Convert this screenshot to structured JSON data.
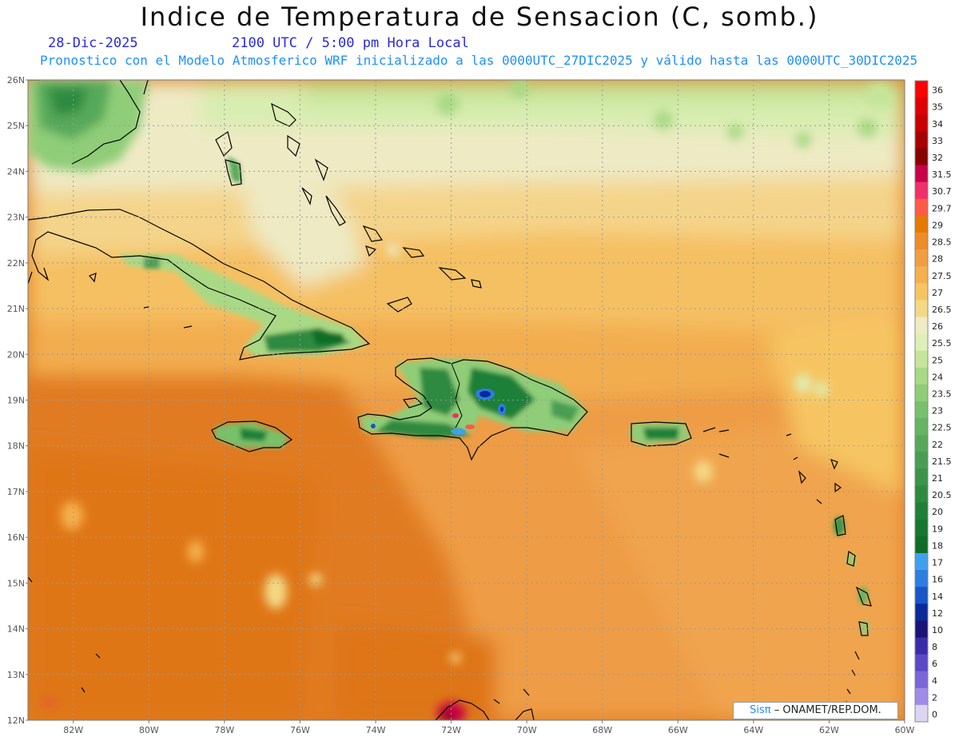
{
  "header": {
    "title": "Indice de Temperatura de Sensacion (C, somb.)",
    "date": "28-Dic-2025",
    "time": "2100 UTC / 5:00 pm Hora Local",
    "subtitle": "Pronostico con el Modelo Atmosferico WRF inicializado a las 0000UTC_27DIC2025 y válido hasta las  0000UTC_30DIC2025"
  },
  "map": {
    "lat_labels": [
      "26N",
      "25N",
      "24N",
      "23N",
      "22N",
      "21N",
      "20N",
      "19N",
      "18N",
      "17N",
      "16N",
      "15N",
      "14N",
      "13N",
      "12N"
    ],
    "lat_values": [
      26,
      25,
      24,
      23,
      22,
      21,
      20,
      19,
      18,
      17,
      16,
      15,
      14,
      13,
      12
    ],
    "lon_labels": [
      "82W",
      "80W",
      "78W",
      "76W",
      "74W",
      "72W",
      "70W",
      "68W",
      "66W",
      "64W",
      "62W",
      "60W"
    ],
    "lon_values": [
      -82,
      -80,
      -78,
      -76,
      -74,
      -72,
      -70,
      -68,
      -66,
      -64,
      -62,
      -60
    ],
    "lat_range": [
      12,
      26
    ],
    "lon_range": [
      -83.2,
      -60
    ]
  },
  "legend": {
    "labels": [
      "36",
      "35",
      "34",
      "33",
      "32",
      "31.5",
      "30.7",
      "29.7",
      "29",
      "28.5",
      "28",
      "27.5",
      "27",
      "26.5",
      "26",
      "25.5",
      "25",
      "24",
      "23.5",
      "23",
      "22.5",
      "22",
      "21.5",
      "21",
      "20.5",
      "20",
      "19",
      "18",
      "17",
      "16",
      "14",
      "12",
      "10",
      "8",
      "6",
      "4",
      "2",
      "0"
    ],
    "colors": [
      "#ff0000",
      "#e00000",
      "#c80000",
      "#a80000",
      "#880000",
      "#c8004a",
      "#f0306a",
      "#ff5a46",
      "#e57a00",
      "#ef8c2a",
      "#f29d43",
      "#f5b04d",
      "#f6c562",
      "#f4d985",
      "#eeecc4",
      "#dfefb8",
      "#c6e59a",
      "#a9d985",
      "#8fcd78",
      "#78c06b",
      "#65b563",
      "#56a95a",
      "#489e52",
      "#3a9449",
      "#2d8a41",
      "#1f8037",
      "#16772f",
      "#0e6e28",
      "#3fa0f0",
      "#2c7ee0",
      "#1855c8",
      "#0a2a9c",
      "#1a1478",
      "#3a2ca8",
      "#5a48c8",
      "#7a66d8",
      "#a08ce8",
      "#dcd6f4"
    ]
  },
  "credit": {
    "sis": "Sisπ",
    "text": "– ONAMET/REP.DOM."
  }
}
